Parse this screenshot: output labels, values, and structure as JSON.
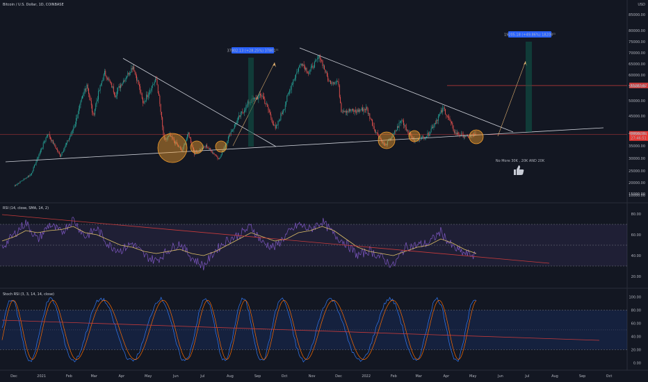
{
  "header": {
    "symbol": "Bitcoin / U.S. Dollar, 1D, COINBASE",
    "currency": "USD"
  },
  "colors": {
    "background": "#131722",
    "bull": "#26a69a",
    "bear": "#ef5350",
    "trendline": "#d1d4dc",
    "circle": "#f59f2e",
    "rsi": "#7e57c2",
    "rsi_ma": "#e0c168",
    "stoch_k": "#3179f5",
    "stoch_d": "#ff6d00",
    "red_line": "#c93b3b"
  },
  "chart_data": [
    {
      "type": "candlestick",
      "panel": "price",
      "x_labels": [
        "Dec",
        "2021",
        "Feb",
        "Mar",
        "Apr",
        "May",
        "Jun",
        "Jul",
        "Aug",
        "Sep",
        "Oct",
        "Nov",
        "Dec",
        "2022",
        "Feb",
        "Mar",
        "Apr",
        "May",
        "Jun",
        "Jul",
        "Aug",
        "Sep",
        "Oct"
      ],
      "y_ticks": [
        "85000.00",
        "80000.00",
        "75000.00",
        "70000.00",
        "65000.00",
        "60000.00",
        "55000.00",
        "50000.00",
        "45000.00",
        "40000.00",
        "35000.00",
        "30000.00",
        "25000.00",
        "20000.00",
        "15000.00",
        "10000.00"
      ],
      "y_ticks_values": [
        85000,
        80000,
        75000,
        70000,
        65000,
        60000,
        55000,
        50000,
        45000,
        40000,
        35000,
        30000,
        25000,
        20000,
        15000,
        10000
      ],
      "ylim": [
        8000,
        88000
      ],
      "price_path": [
        [
          "2020-12-01",
          18500
        ],
        [
          "2020-12-20",
          23500
        ],
        [
          "2021-01-08",
          40000
        ],
        [
          "2021-01-22",
          31000
        ],
        [
          "2021-02-08",
          43000
        ],
        [
          "2021-02-21",
          56000
        ],
        [
          "2021-02-28",
          45000
        ],
        [
          "2021-03-13",
          61000
        ],
        [
          "2021-03-25",
          52000
        ],
        [
          "2021-04-14",
          64000
        ],
        [
          "2021-04-25",
          49000
        ],
        [
          "2021-05-10",
          58000
        ],
        [
          "2021-05-19",
          37000
        ],
        [
          "2021-05-25",
          39000
        ],
        [
          "2021-06-08",
          33000
        ],
        [
          "2021-06-15",
          40000
        ],
        [
          "2021-06-22",
          32000
        ],
        [
          "2021-07-05",
          35000
        ],
        [
          "2021-07-20",
          29800
        ],
        [
          "2021-08-01",
          40000
        ],
        [
          "2021-08-22",
          49500
        ],
        [
          "2021-09-06",
          52000
        ],
        [
          "2021-09-21",
          41000
        ],
        [
          "2021-10-01",
          48000
        ],
        [
          "2021-10-20",
          66000
        ],
        [
          "2021-10-28",
          61000
        ],
        [
          "2021-11-10",
          68500
        ],
        [
          "2021-11-20",
          57000
        ],
        [
          "2021-11-30",
          57000
        ],
        [
          "2021-12-04",
          47000
        ],
        [
          "2021-12-20",
          46500
        ],
        [
          "2022-01-01",
          47500
        ],
        [
          "2022-01-10",
          41500
        ],
        [
          "2022-01-22",
          35000
        ],
        [
          "2022-02-10",
          44000
        ],
        [
          "2022-02-24",
          37000
        ],
        [
          "2022-03-10",
          39000
        ],
        [
          "2022-03-29",
          47500
        ],
        [
          "2022-04-11",
          40000
        ],
        [
          "2022-04-25",
          38500
        ],
        [
          "2022-05-04",
          39506
        ]
      ],
      "current_price": "39506.04",
      "current_price_value": 39506,
      "countdown": "27:46:51",
      "resistance_price": "55283.62",
      "resistance_value": 55284,
      "measure_labels": [
        "37802.13 (+28.25%) 37801¹¹",
        "19205.18 (+49.86%) 18208¹¹"
      ],
      "annotation": "No More 30K , 20K AND 20K"
    },
    {
      "type": "line",
      "panel": "rsi",
      "title": "RSI (14, close, SMA, 14, 2)",
      "y_ticks": [
        "80.00",
        "60.00",
        "40.00",
        "20.00"
      ],
      "y_ticks_values": [
        80,
        60,
        40,
        20
      ],
      "ylim": [
        12,
        88
      ],
      "bands": [
        70,
        50,
        30
      ],
      "series": [
        {
          "role": "rsi",
          "values": [
            48,
            60,
            72,
            55,
            70,
            62,
            75,
            58,
            66,
            50,
            45,
            52,
            40,
            35,
            45,
            52,
            38,
            30,
            45,
            55,
            60,
            68,
            52,
            48,
            60,
            70,
            65,
            73,
            60,
            52,
            40,
            45,
            38,
            30,
            48,
            50,
            52,
            63,
            48,
            42,
            40
          ]
        },
        {
          "role": "ma",
          "values": [
            54,
            58,
            64,
            62,
            64,
            65,
            68,
            62,
            60,
            55,
            50,
            48,
            44,
            42,
            44,
            46,
            42,
            40,
            44,
            50,
            56,
            62,
            58,
            54,
            56,
            62,
            64,
            68,
            64,
            56,
            48,
            44,
            42,
            40,
            44,
            48,
            50,
            56,
            52,
            46,
            42
          ]
        }
      ]
    },
    {
      "type": "line",
      "panel": "stoch_rsi",
      "title": "Stoch RSI (3, 3, 14, 14, close)",
      "y_ticks": [
        "100.00",
        "80.00",
        "60.00",
        "40.00",
        "20.00",
        "0.00"
      ],
      "y_ticks_values": [
        100,
        80,
        60,
        40,
        20,
        0
      ],
      "ylim": [
        -6,
        108
      ],
      "bands": [
        80,
        20
      ]
    }
  ]
}
